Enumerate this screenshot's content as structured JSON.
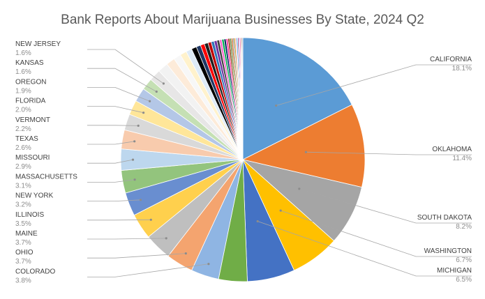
{
  "chart_data": {
    "type": "pie",
    "title": "Bank Reports About Marijuana Businesses By State, 2024 Q2",
    "legend": "none",
    "labeled_slices": [
      {
        "name": "CALIFORNIA",
        "value": 18.1,
        "label": "18.1%",
        "color": "#5b9bd5"
      },
      {
        "name": "OKLAHOMA",
        "value": 11.4,
        "label": "11.4%",
        "color": "#ed7d31"
      },
      {
        "name": "SOUTH DAKOTA",
        "value": 8.2,
        "label": "8.2%",
        "color": "#a5a5a5"
      },
      {
        "name": "WASHINGTON",
        "value": 6.7,
        "label": "6.7%",
        "color": "#ffc000"
      },
      {
        "name": "MICHIGAN",
        "value": 6.5,
        "label": "6.5%",
        "color": "#4472c4"
      },
      {
        "name": "",
        "value": 3.9,
        "label": "",
        "color": "#70ad47"
      },
      {
        "name": "COLORADO",
        "value": 3.8,
        "label": "3.8%",
        "color": "#8fb5e3"
      },
      {
        "name": "OHIO",
        "value": 3.7,
        "label": "3.7%",
        "color": "#f4a46f"
      },
      {
        "name": "MAINE",
        "value": 3.7,
        "label": "3.7%",
        "color": "#bfbfbf"
      },
      {
        "name": "ILLINOIS",
        "value": 3.5,
        "label": "3.5%",
        "color": "#ffd04d"
      },
      {
        "name": "NEW YORK",
        "value": 3.2,
        "label": "3.2%",
        "color": "#698ed0"
      },
      {
        "name": "MASSACHUSETTS",
        "value": 3.1,
        "label": "3.1%",
        "color": "#93c47d"
      },
      {
        "name": "MISSOURI",
        "value": 2.9,
        "label": "2.9%",
        "color": "#bdd7ee"
      },
      {
        "name": "TEXAS",
        "value": 2.6,
        "label": "2.6%",
        "color": "#f8cbad"
      },
      {
        "name": "VERMONT",
        "value": 2.2,
        "label": "2.2%",
        "color": "#d9d9d9"
      },
      {
        "name": "FLORIDA",
        "value": 2.0,
        "label": "2.0%",
        "color": "#ffe699"
      },
      {
        "name": "OREGON",
        "value": 1.9,
        "label": "1.9%",
        "color": "#b4c7e7"
      },
      {
        "name": "KANSAS",
        "value": 1.6,
        "label": "1.6%",
        "color": "#c5e0b4"
      },
      {
        "name": "NEW JERSEY",
        "value": 1.6,
        "label": "1.6%",
        "color": "#e7e6e6"
      }
    ],
    "small_slices": [
      {
        "value": 1.4,
        "color": "#f2f2f2"
      },
      {
        "value": 1.2,
        "color": "#fdebd9"
      },
      {
        "value": 1.0,
        "color": "#f7f7f7"
      },
      {
        "value": 0.9,
        "color": "#fff2cc"
      },
      {
        "value": 0.8,
        "color": "#deebf7"
      },
      {
        "value": 0.7,
        "color": "#000000"
      },
      {
        "value": 0.6,
        "color": "#203864"
      },
      {
        "value": 0.55,
        "color": "#ff0000"
      },
      {
        "value": 0.5,
        "color": "#1f1f1f"
      },
      {
        "value": 0.45,
        "color": "#c00000"
      },
      {
        "value": 0.4,
        "color": "#2e75b6"
      },
      {
        "value": 0.38,
        "color": "#7030a0"
      },
      {
        "value": 0.35,
        "color": "#404040"
      },
      {
        "value": 0.32,
        "color": "#ff66cc"
      },
      {
        "value": 0.3,
        "color": "#00b050"
      },
      {
        "value": 0.28,
        "color": "#002060"
      },
      {
        "value": 0.26,
        "color": "#ff3399"
      },
      {
        "value": 0.24,
        "color": "#833c0b"
      },
      {
        "value": 0.22,
        "color": "#548235"
      },
      {
        "value": 0.2,
        "color": "#c55a11"
      },
      {
        "value": 0.18,
        "color": "#7f7f7f"
      },
      {
        "value": 0.17,
        "color": "#bf9000"
      },
      {
        "value": 0.16,
        "color": "#ff99cc"
      },
      {
        "value": 0.15,
        "color": "#00b0f0"
      },
      {
        "value": 0.14,
        "color": "#990033"
      },
      {
        "value": 0.13,
        "color": "#9966ff"
      },
      {
        "value": 0.12,
        "color": "#ff0066"
      },
      {
        "value": 0.11,
        "color": "#666666"
      },
      {
        "value": 0.1,
        "color": "#cc3300"
      },
      {
        "value": 0.1,
        "color": "#336699"
      }
    ]
  }
}
